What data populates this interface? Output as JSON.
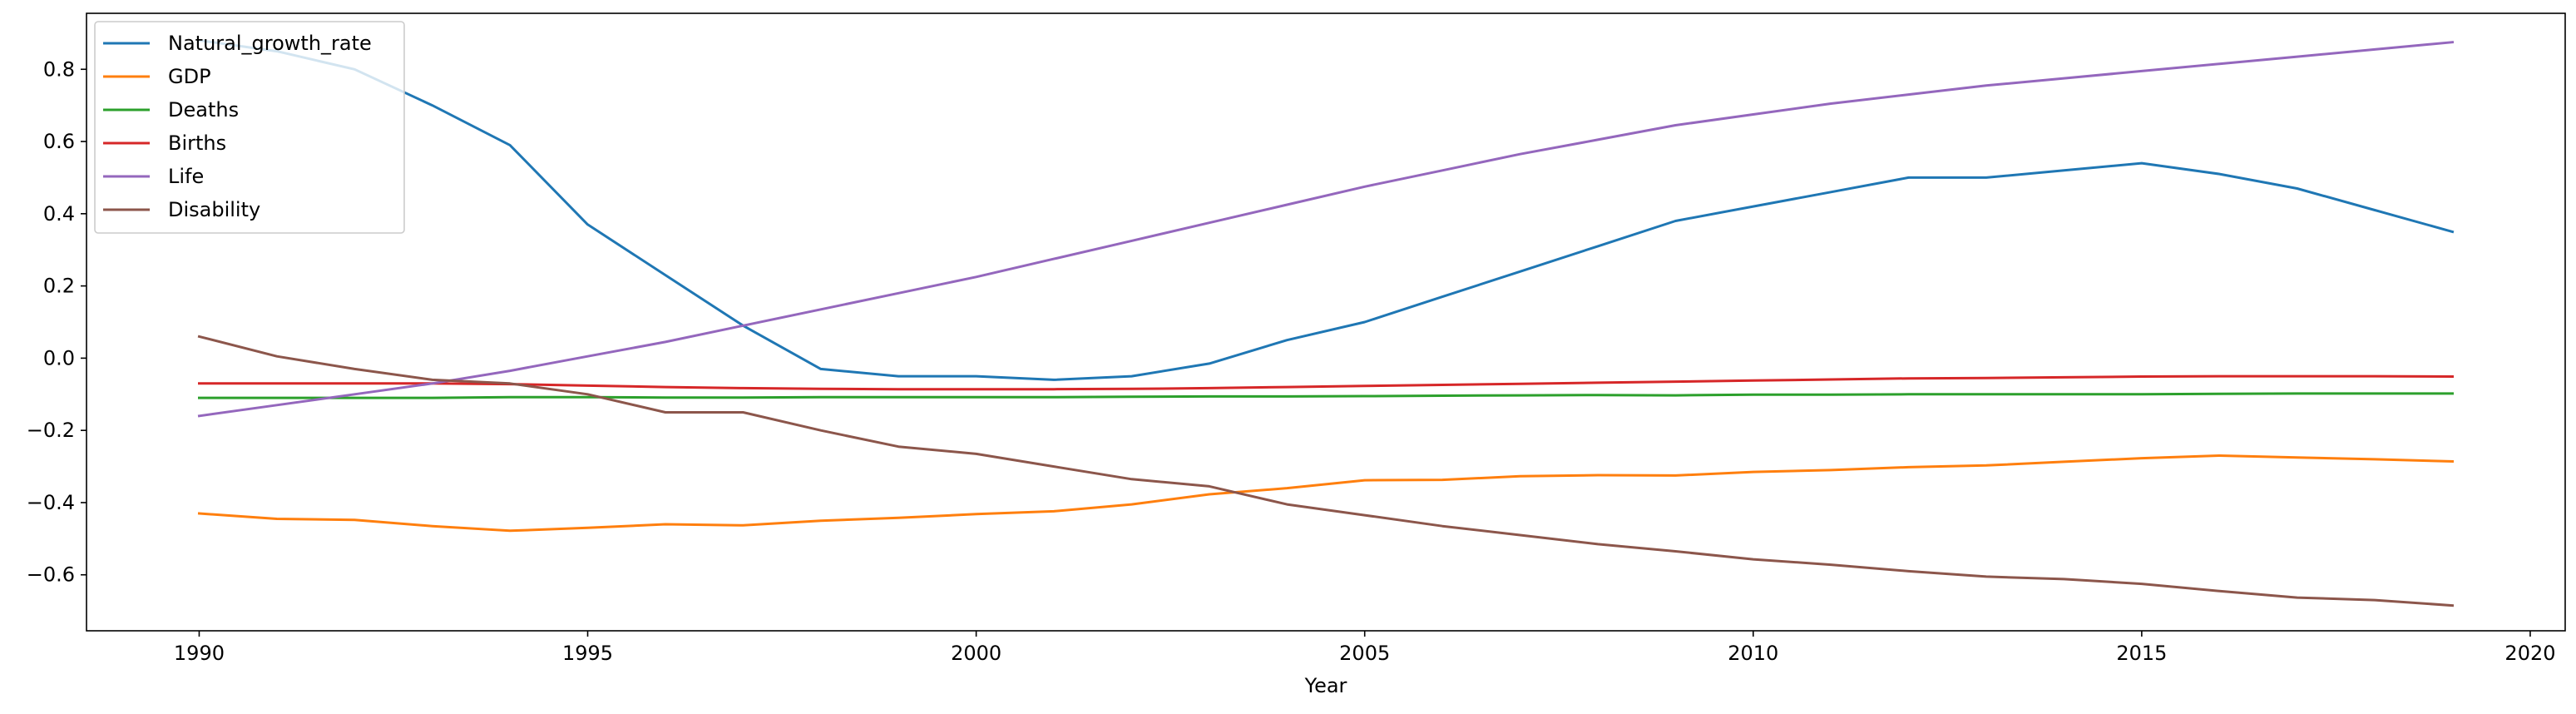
{
  "chart_data": {
    "type": "line",
    "title": "",
    "xlabel": "Year",
    "ylabel": "",
    "xlim": [
      1988.55,
      2020.45
    ],
    "ylim": [
      -0.755,
      0.955
    ],
    "xticks": [
      1990,
      1995,
      2000,
      2005,
      2010,
      2015,
      2020
    ],
    "yticks": [
      -0.6,
      -0.4,
      -0.2,
      0.0,
      0.2,
      0.4,
      0.6,
      0.8
    ],
    "ytick_labels": [
      "−0.6",
      "−0.4",
      "−0.2",
      "0.0",
      "0.2",
      "0.4",
      "0.6",
      "0.8"
    ],
    "grid": false,
    "legend_position": "upper left",
    "x": [
      1990,
      1991,
      1992,
      1993,
      1994,
      1995,
      1996,
      1997,
      1998,
      1999,
      2000,
      2001,
      2002,
      2003,
      2004,
      2005,
      2006,
      2007,
      2008,
      2009,
      2010,
      2011,
      2012,
      2013,
      2014,
      2015,
      2016,
      2017,
      2018,
      2019
    ],
    "series": [
      {
        "name": "Natural_growth_rate",
        "color": "#1f77b4",
        "values": [
          0.88,
          0.85,
          0.8,
          0.7,
          0.59,
          0.37,
          0.23,
          0.09,
          -0.03,
          -0.05,
          -0.05,
          -0.06,
          -0.05,
          -0.015,
          0.05,
          0.1,
          0.17,
          0.24,
          0.31,
          0.38,
          0.42,
          0.46,
          0.5,
          0.5,
          0.52,
          0.54,
          0.51,
          0.47,
          0.41,
          0.35
        ]
      },
      {
        "name": "GDP",
        "color": "#ff7f0e",
        "values": [
          -0.43,
          -0.445,
          -0.448,
          -0.465,
          -0.478,
          -0.47,
          -0.46,
          -0.463,
          -0.45,
          -0.442,
          -0.432,
          -0.424,
          -0.405,
          -0.377,
          -0.36,
          -0.338,
          -0.337,
          -0.327,
          -0.324,
          -0.325,
          -0.315,
          -0.31,
          -0.302,
          -0.297,
          -0.287,
          -0.277,
          -0.27,
          -0.275,
          -0.28,
          -0.286
        ]
      },
      {
        "name": "Deaths",
        "color": "#2ca02c",
        "values": [
          -0.11,
          -0.11,
          -0.11,
          -0.11,
          -0.108,
          -0.108,
          -0.109,
          -0.109,
          -0.108,
          -0.108,
          -0.108,
          -0.108,
          -0.107,
          -0.106,
          -0.106,
          -0.105,
          -0.104,
          -0.103,
          -0.102,
          -0.103,
          -0.101,
          -0.101,
          -0.1,
          -0.1,
          -0.1,
          -0.1,
          -0.099,
          -0.098,
          -0.098,
          -0.098
        ]
      },
      {
        "name": "Births",
        "color": "#d62728",
        "values": [
          -0.07,
          -0.07,
          -0.07,
          -0.07,
          -0.072,
          -0.076,
          -0.08,
          -0.083,
          -0.085,
          -0.086,
          -0.086,
          -0.086,
          -0.085,
          -0.083,
          -0.08,
          -0.077,
          -0.074,
          -0.071,
          -0.068,
          -0.065,
          -0.062,
          -0.059,
          -0.056,
          -0.055,
          -0.053,
          -0.051,
          -0.05,
          -0.05,
          -0.05,
          -0.051
        ]
      },
      {
        "name": "Life",
        "color": "#9467bd",
        "values": [
          -0.16,
          -0.13,
          -0.1,
          -0.07,
          -0.035,
          0.005,
          0.045,
          0.09,
          0.135,
          0.18,
          0.225,
          0.275,
          0.325,
          0.375,
          0.425,
          0.475,
          0.52,
          0.565,
          0.605,
          0.645,
          0.675,
          0.705,
          0.73,
          0.755,
          0.775,
          0.795,
          0.815,
          0.835,
          0.855,
          0.875
        ]
      },
      {
        "name": "Disability",
        "color": "#8c564b",
        "values": [
          0.06,
          0.005,
          -0.03,
          -0.06,
          -0.07,
          -0.1,
          -0.15,
          -0.15,
          -0.2,
          -0.245,
          -0.265,
          -0.3,
          -0.335,
          -0.355,
          -0.405,
          -0.435,
          -0.465,
          -0.49,
          -0.515,
          -0.535,
          -0.557,
          -0.572,
          -0.59,
          -0.605,
          -0.612,
          -0.625,
          -0.645,
          -0.663,
          -0.67,
          -0.685
        ]
      }
    ]
  }
}
